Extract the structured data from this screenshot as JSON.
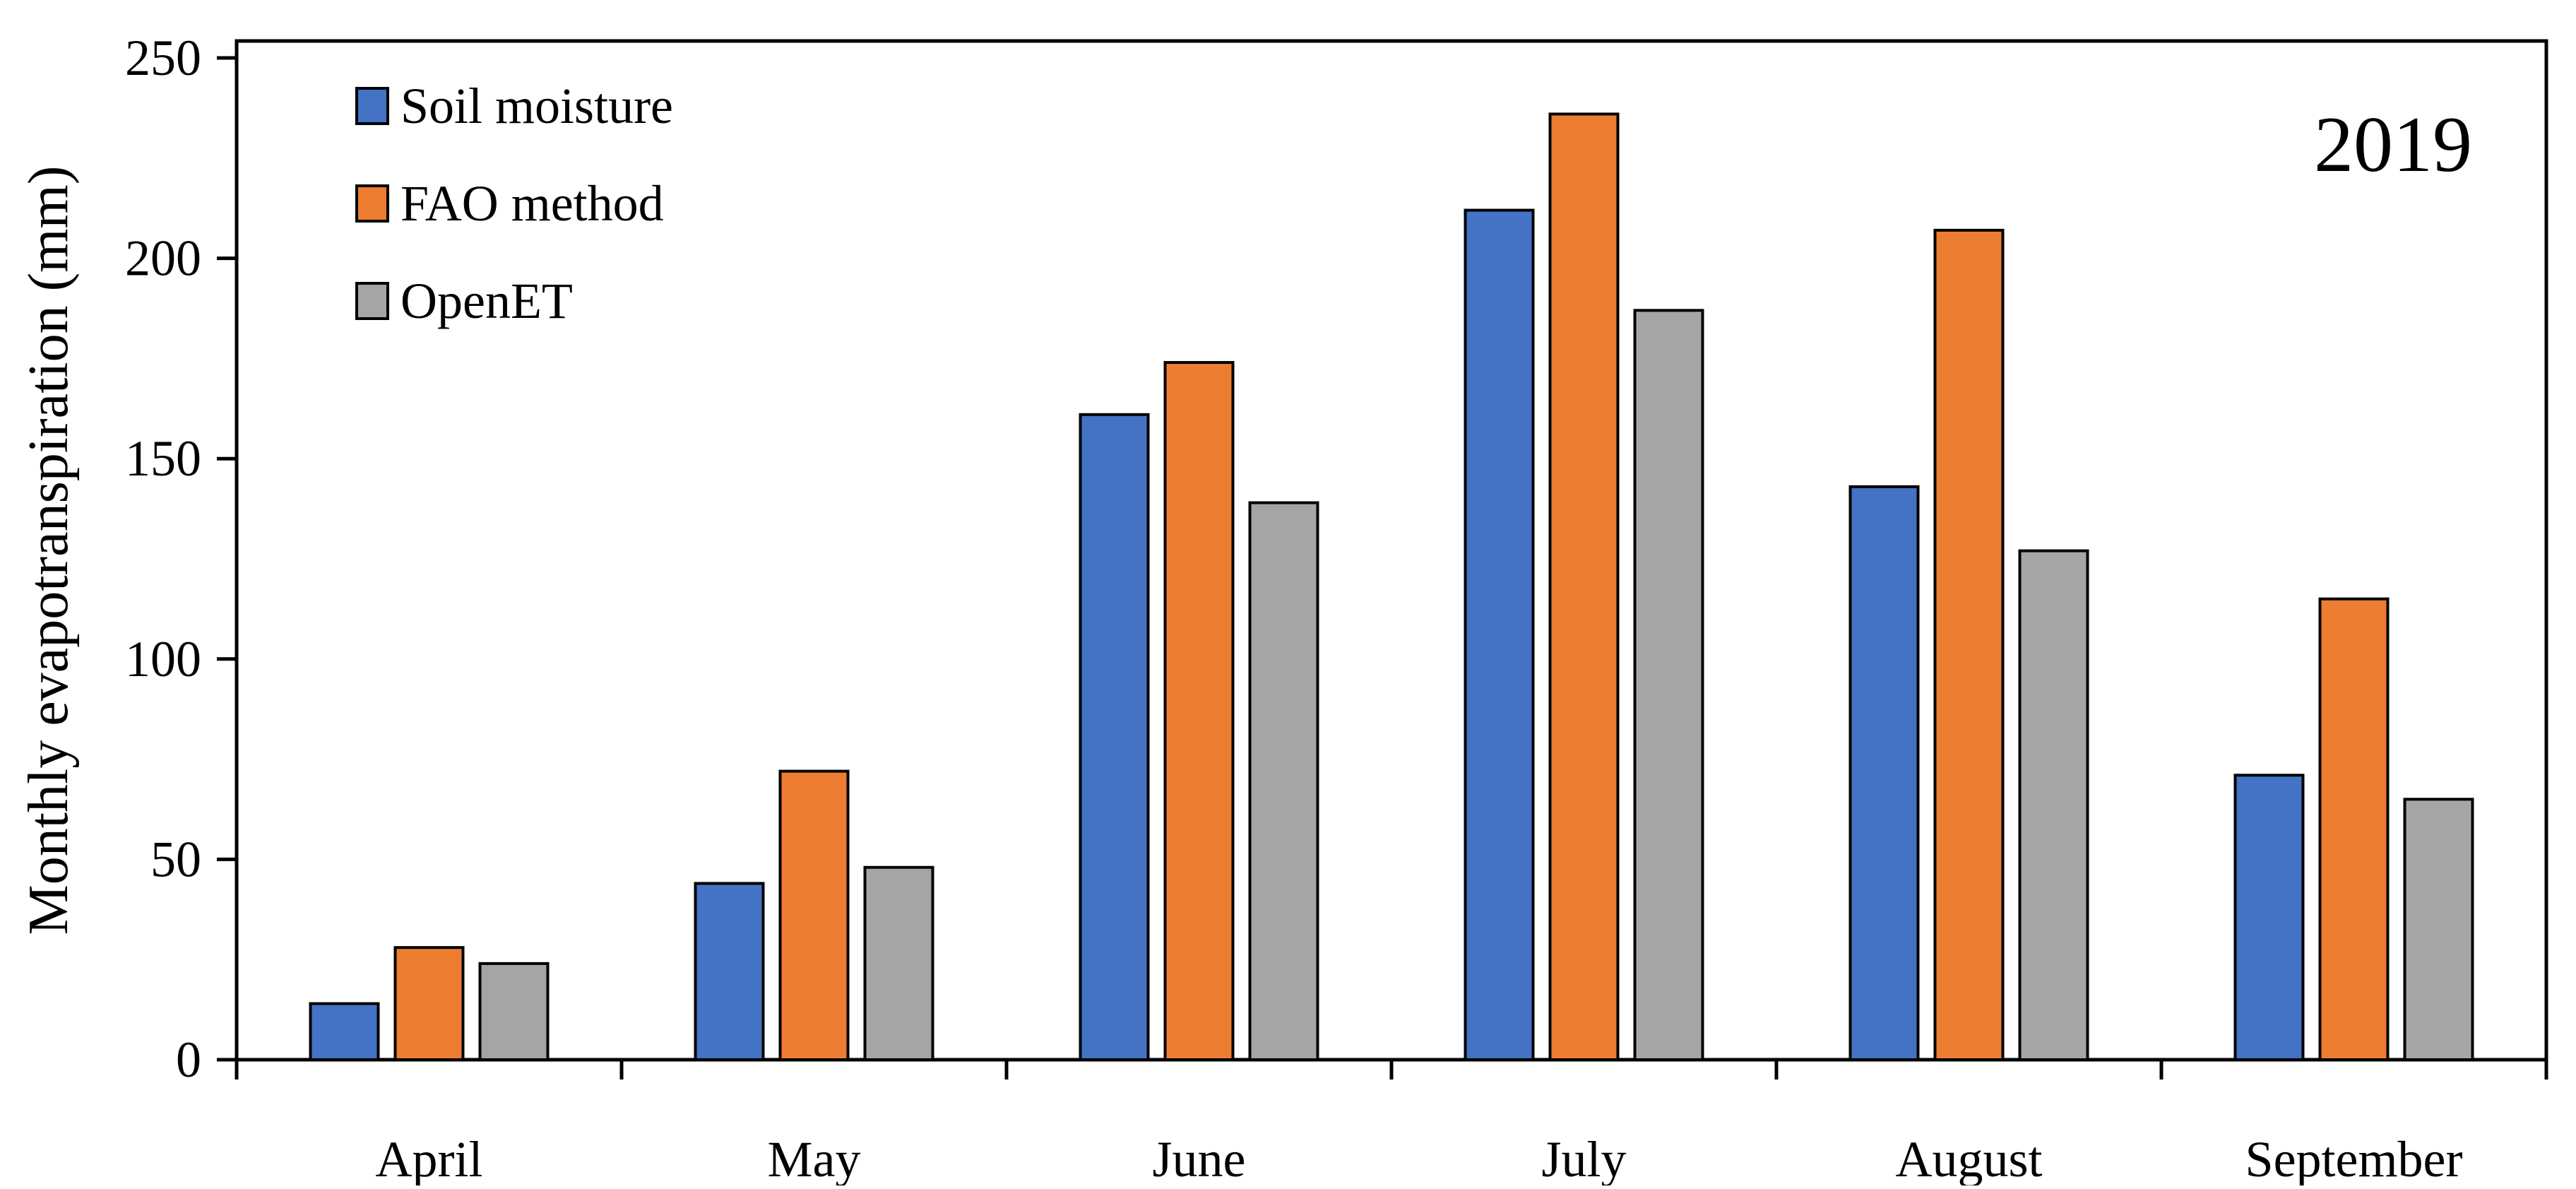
{
  "chart_data": {
    "type": "bar",
    "ylabel": "Monthly evapotranspiration (mm)",
    "annotation": "2019",
    "categories": [
      "April",
      "May",
      "June",
      "July",
      "August",
      "September"
    ],
    "series": [
      {
        "name": "Soil moisture",
        "color": "#4472C4",
        "values": [
          14,
          44,
          161,
          212,
          143,
          71
        ]
      },
      {
        "name": "FAO method",
        "color": "#ED7D31",
        "values": [
          28,
          72,
          174,
          236,
          207,
          115
        ]
      },
      {
        "name": "OpenET",
        "color": "#A5A5A5",
        "values": [
          24,
          48,
          139,
          187,
          127,
          65
        ]
      }
    ],
    "ylim": [
      0,
      250
    ],
    "yticks": [
      "0",
      "50",
      "100",
      "150",
      "200",
      "250"
    ],
    "grid": false,
    "legend_position": "top-left"
  }
}
